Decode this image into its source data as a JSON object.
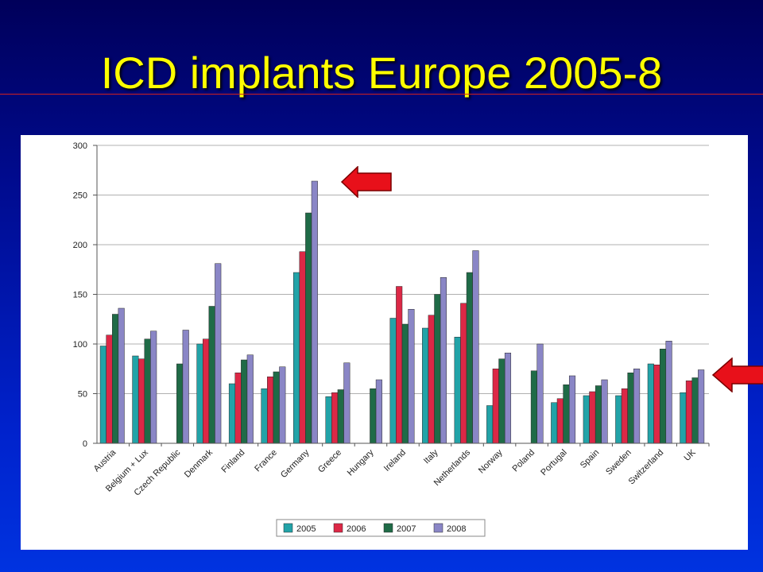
{
  "slide": {
    "title": "ICD implants Europe 2005-8"
  },
  "colors": {
    "2005": "#22a3a8",
    "2006": "#dc2846",
    "2007": "#1f6b47",
    "2008": "#8a86c6",
    "arrow": "#e8101a"
  },
  "annotations": {
    "arrow_icons": [
      "left-arrow-icon",
      "left-arrow-icon"
    ]
  },
  "chart_data": {
    "type": "bar",
    "title": "",
    "xlabel": "",
    "ylabel": "",
    "ylim": [
      0,
      300
    ],
    "yticks": [
      0,
      50,
      100,
      150,
      200,
      250,
      300
    ],
    "grid": true,
    "legend_position": "bottom-center",
    "categories": [
      "Austria",
      "Belgium + Lux",
      "Czech Republic",
      "Denmark",
      "Finland",
      "France",
      "Germany",
      "Greece",
      "Hungary",
      "Ireland",
      "Italy",
      "Netherlands",
      "Norway",
      "Poland",
      "Portugal",
      "Spain",
      "Sweden",
      "Switzerland",
      "UK"
    ],
    "series": [
      {
        "name": "2005",
        "values": [
          98,
          88,
          null,
          100,
          60,
          55,
          172,
          47,
          null,
          126,
          116,
          107,
          38,
          null,
          41,
          48,
          48,
          80,
          51
        ]
      },
      {
        "name": "2006",
        "values": [
          109,
          85,
          null,
          105,
          71,
          67,
          193,
          51,
          null,
          158,
          129,
          141,
          75,
          null,
          45,
          52,
          55,
          79,
          63
        ]
      },
      {
        "name": "2007",
        "values": [
          130,
          105,
          80,
          138,
          84,
          72,
          232,
          54,
          55,
          120,
          150,
          172,
          85,
          73,
          59,
          58,
          71,
          95,
          66
        ]
      },
      {
        "name": "2008",
        "values": [
          136,
          113,
          114,
          181,
          89,
          77,
          264,
          81,
          64,
          135,
          167,
          194,
          91,
          100,
          68,
          64,
          75,
          103,
          74
        ]
      }
    ]
  }
}
